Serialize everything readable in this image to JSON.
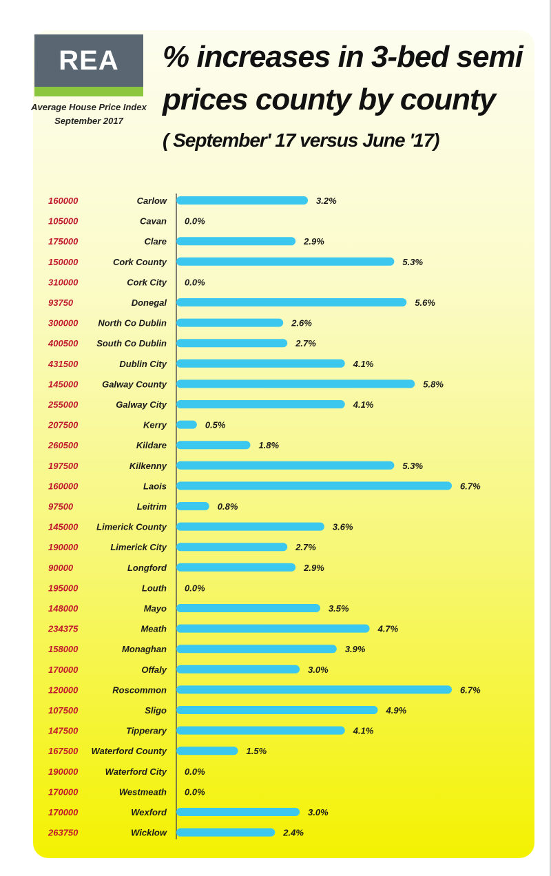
{
  "brand": {
    "logo_text": "REA",
    "subtitle_line1": "Average House Price Index",
    "subtitle_line2": "September 2017"
  },
  "title": {
    "line1": "% increases  in 3-bed semi",
    "line2": "prices county by county",
    "line3": "( September' 17 versus June '17)"
  },
  "colors": {
    "bar": "#3cc8ee",
    "price_text": "#c0182c",
    "logo_bg": "#5a6772",
    "logo_accent": "#8cc63f"
  },
  "chart_data": {
    "type": "bar",
    "orientation": "horizontal",
    "title": "% increases  in 3-bed semi prices county by county",
    "subtitle": "( September' 17 versus June '17)",
    "categories": [
      "Carlow",
      "Cavan",
      "Clare",
      "Cork County",
      "Cork City",
      "Donegal",
      "North Co Dublin",
      "South Co Dublin",
      "Dublin City",
      "Galway County",
      "Galway City",
      "Kerry",
      "Kildare",
      "Kilkenny",
      "Laois",
      "Leitrim",
      "Limerick County",
      "Limerick City",
      "Longford",
      "Louth",
      "Mayo",
      "Meath",
      "Monaghan",
      "Offaly",
      "Roscommon",
      "Sligo",
      "Tipperary",
      "Waterford County",
      "Waterford City",
      "Westmeath",
      "Wexford",
      "Wicklow"
    ],
    "prices": [
      "160000",
      "105000",
      "175000",
      "150000",
      "310000",
      "93750",
      "300000",
      "400500",
      "431500",
      "145000",
      "255000",
      "207500",
      "260500",
      "197500",
      "160000",
      "97500",
      "145000",
      "190000",
      "90000",
      "195000",
      "148000",
      "234375",
      "158000",
      "170000",
      "120000",
      "107500",
      "147500",
      "167500",
      "190000",
      "170000",
      "170000",
      "263750"
    ],
    "values": [
      3.2,
      0.0,
      2.9,
      5.3,
      0.0,
      5.6,
      2.6,
      2.7,
      4.1,
      5.8,
      4.1,
      0.5,
      1.8,
      5.3,
      6.7,
      0.8,
      3.6,
      2.7,
      2.9,
      0.0,
      3.5,
      4.7,
      3.9,
      3.0,
      6.7,
      4.9,
      4.1,
      1.5,
      0.0,
      0.0,
      3.0,
      2.4
    ],
    "value_labels": [
      "3.2%",
      "0.0%",
      "2.9%",
      "5.3%",
      "0.0%",
      "5.6%",
      "2.6%",
      "2.7%",
      "4.1%",
      "5.8%",
      "4.1%",
      "0.5%",
      "1.8%",
      "5.3%",
      "6.7%",
      "0.8%",
      "3.6%",
      "2.7%",
      "2.9%",
      "0.0%",
      "3.5%",
      "4.7%",
      "3.9%",
      "3.0%",
      "6.7%",
      "4.9%",
      "4.1%",
      "1.5%",
      "0.0%",
      "0.0%",
      "3.0%",
      "2.4%"
    ],
    "xlim": [
      0,
      6.7
    ],
    "grid": false,
    "legend": "none"
  }
}
